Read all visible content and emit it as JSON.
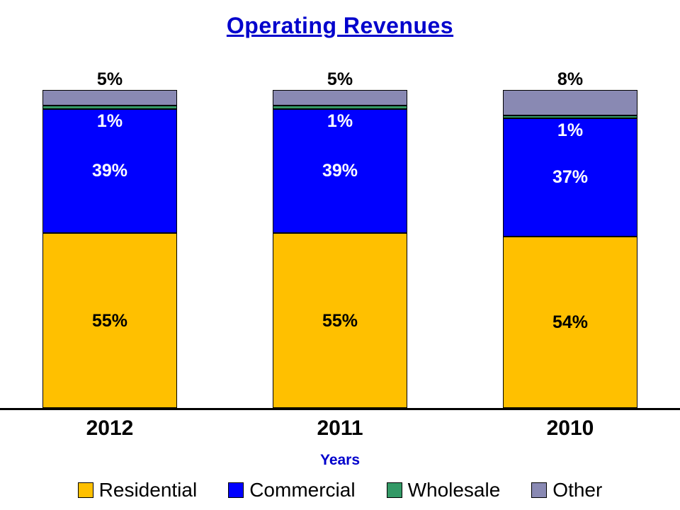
{
  "title": "Operating Revenues",
  "colors": {
    "title": "#0000CC",
    "xlabel": "#0000CC",
    "axis": "#000000",
    "background": "#FFFFFF"
  },
  "chart_data": {
    "type": "stacked-bar",
    "title": "Operating Revenues",
    "categories": [
      "2012",
      "2011",
      "2010"
    ],
    "series": [
      {
        "name": "Residential",
        "color": "#FFC000",
        "label_color": "#000000",
        "values": [
          55,
          55,
          54
        ]
      },
      {
        "name": "Commercial",
        "color": "#0000FF",
        "label_color": "#FFFFFF",
        "values": [
          39,
          39,
          37
        ]
      },
      {
        "name": "Wholesale",
        "color": "#339966",
        "label_color": "#FFFFFF",
        "values": [
          1,
          1,
          1
        ]
      },
      {
        "name": "Other",
        "color": "#8989B3",
        "label_color": "#000000",
        "values": [
          5,
          5,
          8
        ]
      }
    ],
    "xlabel": "Years",
    "ylabel": "",
    "ylim": [
      0,
      100
    ],
    "value_suffix": "%",
    "legend_position": "bottom",
    "legend": [
      "Residential",
      "Commercial",
      "Wholesale",
      "Other"
    ],
    "grid": false
  }
}
